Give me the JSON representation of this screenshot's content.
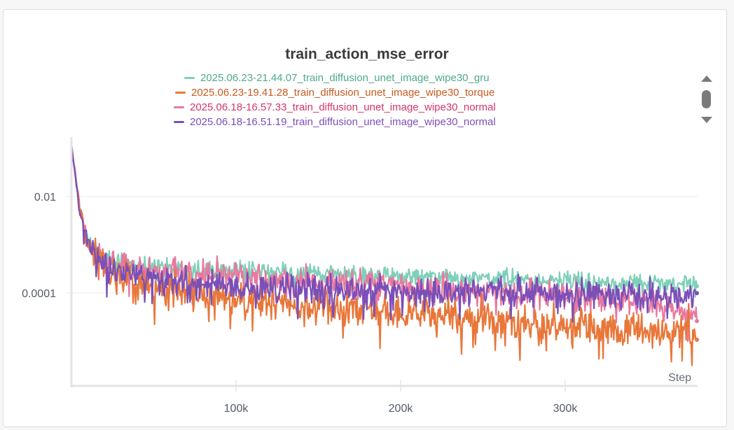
{
  "panel": {
    "title": "train_action_mse_error"
  },
  "legend": {
    "items": [
      {
        "label": "2025.06.23-21.44.07_train_diffusion_unet_image_wipe30_gru",
        "line_color": "#7fd0b9",
        "text_color": "#4fa88e"
      },
      {
        "label": "2025.06.23-19.41.28_train_diffusion_unet_image_wipe30_torque",
        "line_color": "#e8773a",
        "text_color": "#c95a1e"
      },
      {
        "label": "2025.06.18-16.57.33_train_diffusion_unet_image_wipe30_normal",
        "line_color": "#e8799f",
        "text_color": "#d6336c"
      },
      {
        "label": "2025.06.18-16.51.19_train_diffusion_unet_image_wipe30_normal",
        "line_color": "#7b4fb8",
        "text_color": "#7c4fb8"
      }
    ],
    "scroll_up_icon": "triangle-up",
    "scroll_down_icon": "triangle-down"
  },
  "chart_data": {
    "type": "line",
    "title": "train_action_mse_error",
    "xlabel": "Step",
    "ylabel": "",
    "yscale": "log",
    "x_ticks": [
      "100k",
      "200k",
      "300k"
    ],
    "x_tick_values": [
      100000,
      200000,
      300000
    ],
    "y_ticks": [
      "0.01",
      "0.0001"
    ],
    "y_tick_values": [
      0.01,
      0.0001
    ],
    "xlim": [
      0,
      380000
    ],
    "ylim": [
      1.2e-06,
      0.16
    ],
    "grid": true,
    "legend_position": "top",
    "series": [
      {
        "name": "2025.06.23-21.44.07_train_diffusion_unet_image_wipe30_gru",
        "color": "#7fd0b9",
        "x": [
          0,
          5000,
          10000,
          20000,
          30000,
          50000,
          100000,
          150000,
          200000,
          250000,
          300000,
          350000,
          380000
        ],
        "y": [
          0.12,
          0.006,
          0.0012,
          0.0006,
          0.0004,
          0.00035,
          0.0003,
          0.00026,
          0.00022,
          0.0002,
          0.00018,
          0.00016,
          0.00015
        ]
      },
      {
        "name": "2025.06.23-19.41.28_train_diffusion_unet_image_wipe30_torque",
        "color": "#e8773a",
        "x": [
          0,
          5000,
          10000,
          20000,
          30000,
          50000,
          100000,
          150000,
          200000,
          250000,
          300000,
          350000,
          380000
        ],
        "y": [
          0.12,
          0.005,
          0.0009,
          0.0003,
          0.0002,
          0.00012,
          8e-05,
          5e-05,
          4e-05,
          3e-05,
          2.2e-05,
          1.8e-05,
          1.7e-05
        ]
      },
      {
        "name": "2025.06.18-16.57.33_train_diffusion_unet_image_wipe30_normal",
        "color": "#e8799f",
        "x": [
          0,
          5000,
          10000,
          20000,
          30000,
          50000,
          100000,
          150000,
          200000,
          250000,
          300000,
          350000,
          380000
        ],
        "y": [
          0.12,
          0.006,
          0.0011,
          0.0005,
          0.00035,
          0.00028,
          0.00022,
          0.00017,
          0.00014,
          0.00011,
          9e-05,
          6e-05,
          3.5e-05
        ]
      },
      {
        "name": "2025.06.18-16.51.19_train_diffusion_unet_image_wipe30_normal",
        "color": "#7b4fb8",
        "x": [
          0,
          5000,
          10000,
          20000,
          30000,
          50000,
          100000,
          150000,
          200000,
          250000,
          300000,
          350000,
          380000
        ],
        "y": [
          0.12,
          0.005,
          0.001,
          0.0004,
          0.00025,
          0.00018,
          0.00014,
          0.00012,
          0.00011,
          0.0001,
          0.0001,
          9e-05,
          8.5e-05
        ]
      }
    ]
  }
}
